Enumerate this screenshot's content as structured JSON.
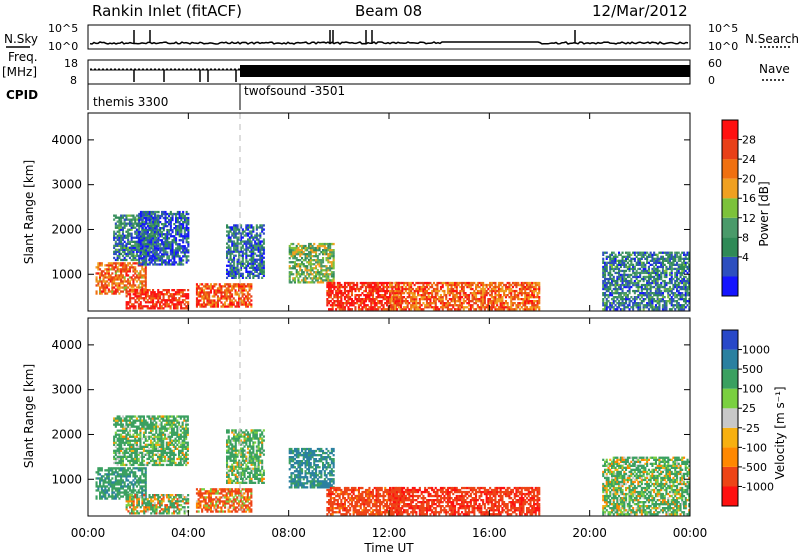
{
  "header": {
    "station": "Rankin Inlet (fitACF)",
    "beam": "Beam 08",
    "date": "12/Mar/2012"
  },
  "top_panels": {
    "nsky_label": "N.Sky",
    "nsky_ticks": [
      "10^5",
      "10^0"
    ],
    "nsearch_label": "N.Search",
    "nsearch_ticks": [
      "10^5",
      "10^0"
    ],
    "freq_label": "Freq.",
    "freq_unit": "[MHz]",
    "freq_ticks": [
      "18",
      "8"
    ],
    "nave_label": "Nave",
    "nave_ticks": [
      "60",
      "0"
    ],
    "cpid_label": "CPID",
    "cpid_segments": [
      "themis 3300",
      "twofsound -3501"
    ]
  },
  "colors": {
    "power": [
      "#1414ff",
      "#2d4fbf",
      "#2f8a57",
      "#4a9a6a",
      "#7cc23a",
      "#f0a020",
      "#f07010",
      "#e84018",
      "#ff1010"
    ],
    "velocity": [
      "#ff1010",
      "#ee4416",
      "#ff8800",
      "#f7b010",
      "#c8c8c8",
      "#7ad040",
      "#3aa060",
      "#2a80a0",
      "#2848c8"
    ]
  },
  "power_panel": {
    "ylabel": "Slant Range [km]",
    "colorbar_label": "Power [dB]",
    "colorbar_ticks": [
      "28",
      "24",
      "20",
      "16",
      "12",
      "8",
      "4"
    ]
  },
  "velocity_panel": {
    "ylabel": "Slant Range [km]",
    "colorbar_label": "Velocity  [m s⁻¹]",
    "colorbar_ticks": [
      "1000",
      "500",
      "100",
      "25",
      "-25",
      "-100",
      "-500",
      "-1000"
    ]
  },
  "time_axis": {
    "ticks": [
      "00:00",
      "04:00",
      "08:00",
      "12:00",
      "16:00",
      "20:00",
      "00:00"
    ],
    "xlabel": "Time UT"
  },
  "chart_data": [
    {
      "type": "heatmap",
      "title": "Power",
      "xlabel": "Time UT",
      "ylabel": "Slant Range [km]",
      "xlim": [
        0,
        24
      ],
      "ylim": [
        180,
        4600
      ],
      "y_ticks": [
        1000,
        2000,
        3000,
        4000
      ],
      "colorbar": {
        "label": "Power [dB]",
        "range": [
          0,
          30
        ],
        "ticks": [
          4,
          8,
          12,
          16,
          20,
          24,
          28
        ]
      },
      "regions": [
        {
          "t": [
            0.3,
            2.3
          ],
          "r": [
            550,
            1250
          ],
          "value": 22
        },
        {
          "t": [
            1.0,
            2.8
          ],
          "r": [
            1300,
            2300
          ],
          "value": 8
        },
        {
          "t": [
            2.0,
            4.0
          ],
          "r": [
            1200,
            2400
          ],
          "value": 6
        },
        {
          "t": [
            1.5,
            4.0
          ],
          "r": [
            220,
            650
          ],
          "value": 27
        },
        {
          "t": [
            4.3,
            6.5
          ],
          "r": [
            260,
            780
          ],
          "value": 24
        },
        {
          "t": [
            5.5,
            7.0
          ],
          "r": [
            900,
            2100
          ],
          "value": 7
        },
        {
          "t": [
            8.0,
            9.8
          ],
          "r": [
            800,
            1700
          ],
          "value": 14
        },
        {
          "t": [
            9.5,
            12.5
          ],
          "r": [
            200,
            800
          ],
          "value": 27
        },
        {
          "t": [
            12.0,
            18.0
          ],
          "r": [
            200,
            800
          ],
          "value": 23
        },
        {
          "t": [
            20.5,
            24.0
          ],
          "r": [
            200,
            1500
          ],
          "value": 8
        }
      ]
    },
    {
      "type": "heatmap",
      "title": "Velocity",
      "xlabel": "Time UT",
      "ylabel": "Slant Range [km]",
      "xlim": [
        0,
        24
      ],
      "ylim": [
        180,
        4600
      ],
      "y_ticks": [
        1000,
        2000,
        3000,
        4000
      ],
      "colorbar": {
        "label": "Velocity [m s-1]",
        "range": [
          -1000,
          1000
        ],
        "ticks": [
          -1000,
          -500,
          -100,
          -25,
          25,
          100,
          500,
          1000
        ]
      },
      "regions": [
        {
          "t": [
            0.3,
            2.3
          ],
          "r": [
            550,
            1250
          ],
          "value": 350
        },
        {
          "t": [
            1.0,
            4.0
          ],
          "r": [
            1300,
            2400
          ],
          "value": 200
        },
        {
          "t": [
            1.5,
            4.0
          ],
          "r": [
            220,
            650
          ],
          "value": 100
        },
        {
          "t": [
            4.3,
            6.5
          ],
          "r": [
            260,
            780
          ],
          "value": -150
        },
        {
          "t": [
            5.5,
            7.0
          ],
          "r": [
            900,
            2100
          ],
          "value": 200
        },
        {
          "t": [
            8.0,
            9.8
          ],
          "r": [
            800,
            1700
          ],
          "value": 600
        },
        {
          "t": [
            9.5,
            12.5
          ],
          "r": [
            200,
            800
          ],
          "value": -300
        },
        {
          "t": [
            12.0,
            18.0
          ],
          "r": [
            200,
            800
          ],
          "value": -400
        },
        {
          "t": [
            20.5,
            24.0
          ],
          "r": [
            200,
            1500
          ],
          "value": 150
        }
      ]
    }
  ]
}
